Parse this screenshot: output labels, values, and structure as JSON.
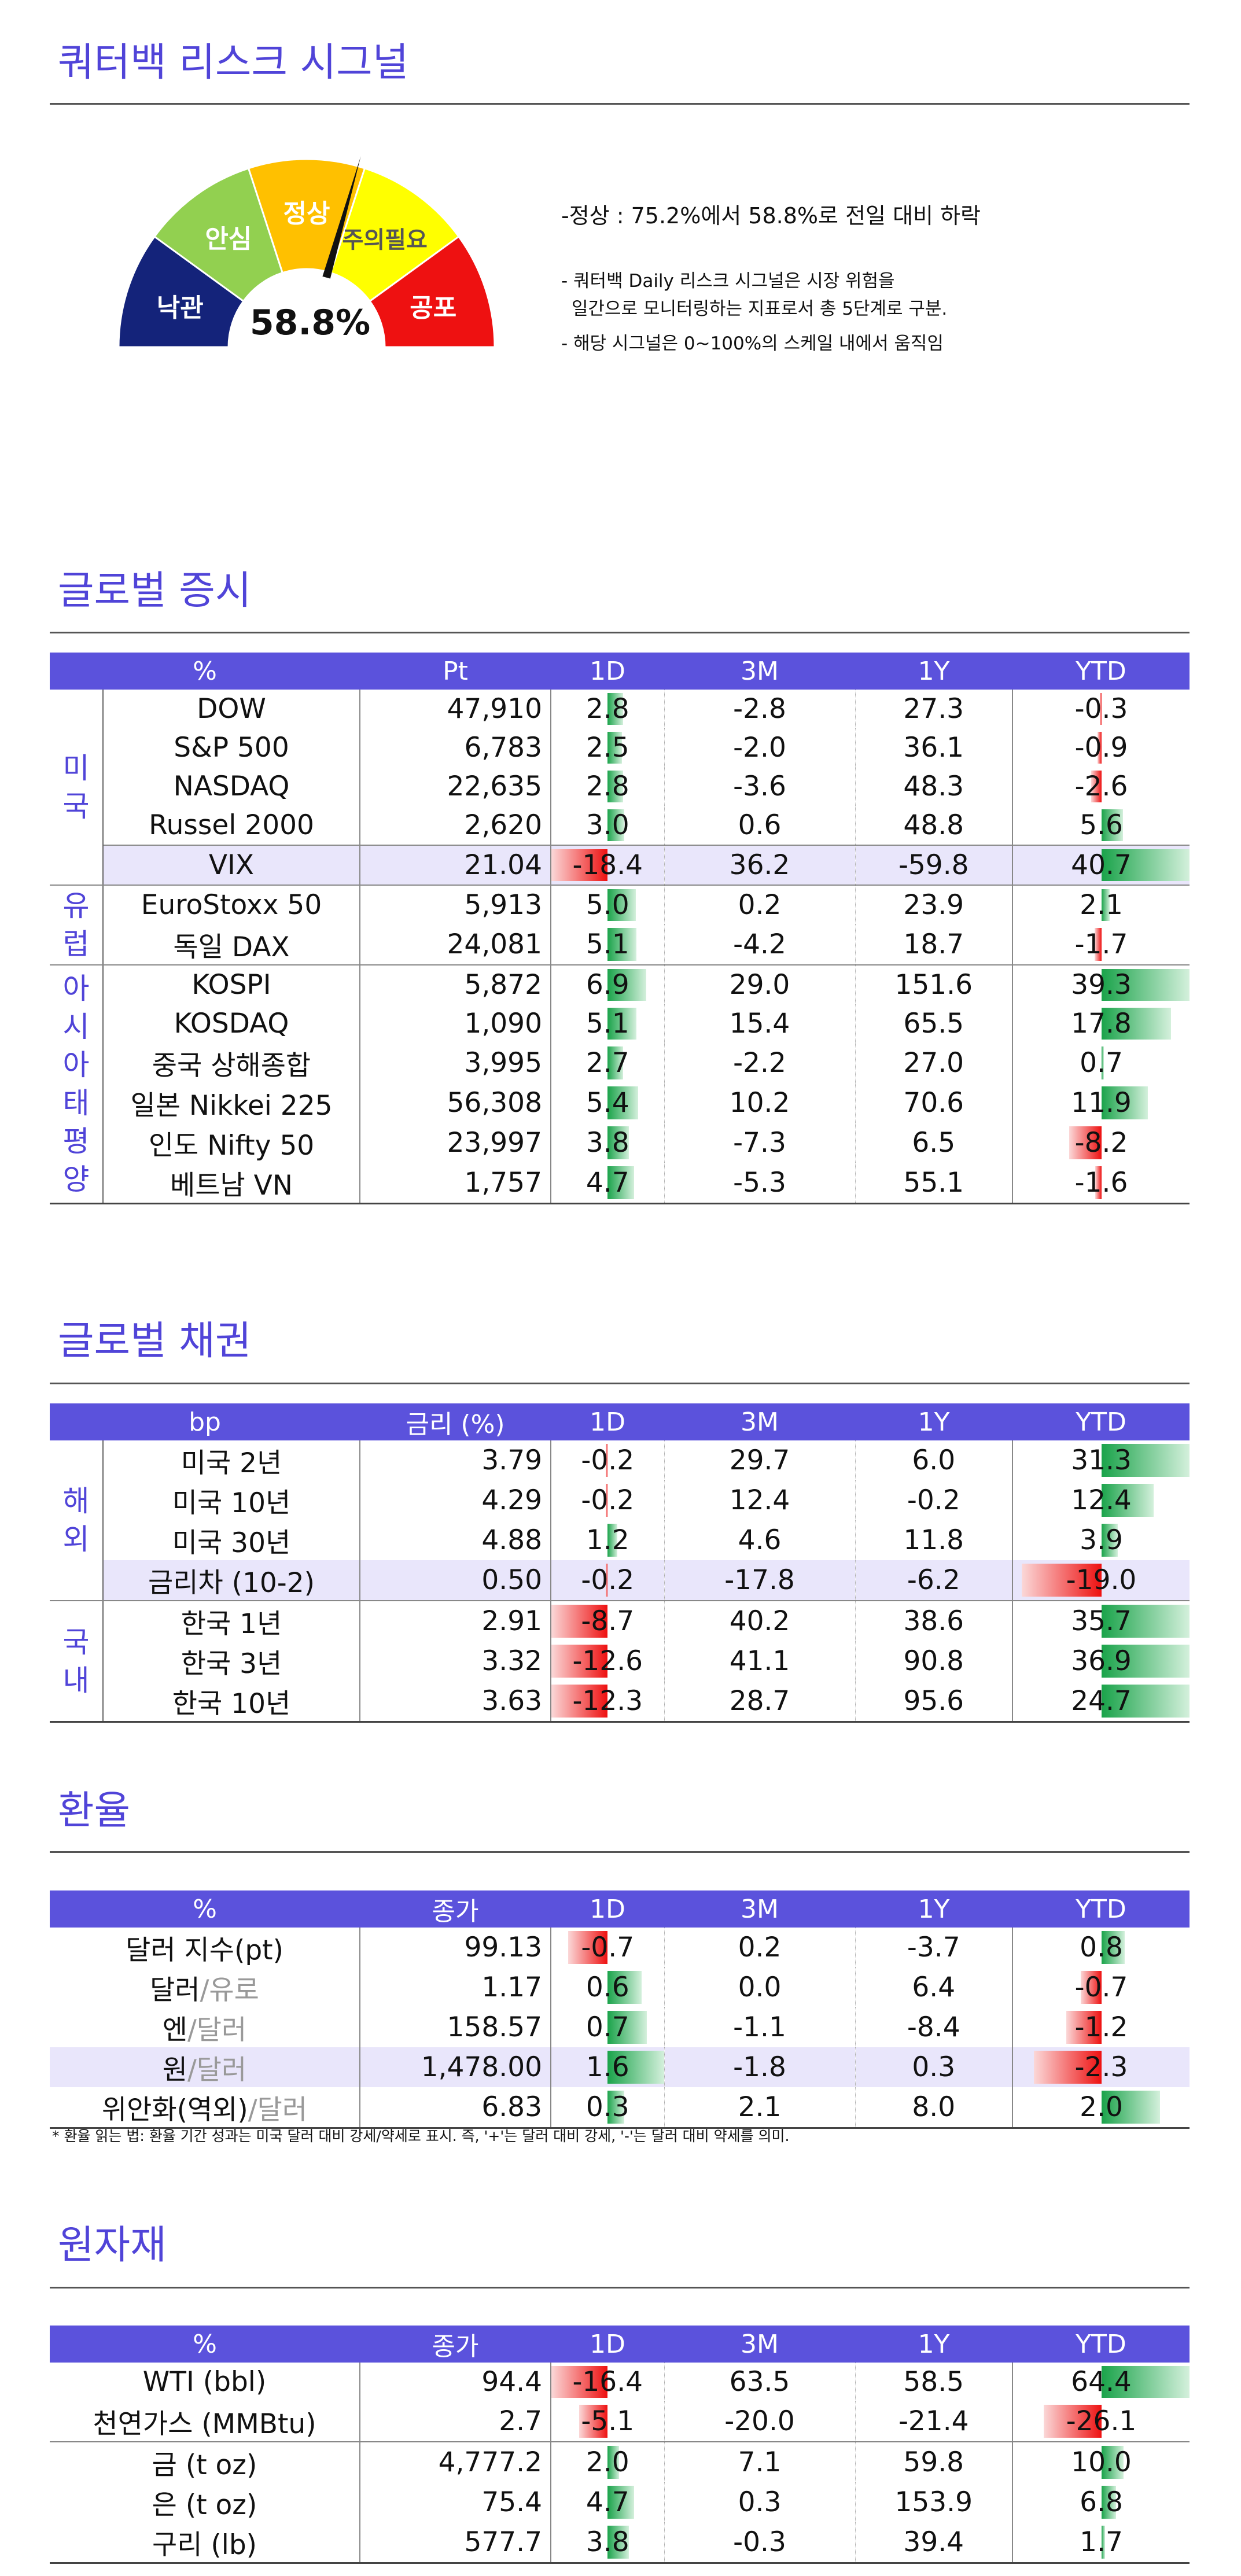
{
  "risk": {
    "title": "쿼터백 리스크 시그널",
    "value_text": "58.8%",
    "value_pct": 58.8,
    "levels": [
      "낙관",
      "안심",
      "정상",
      "주의필요",
      "공포"
    ],
    "summary": "-정상 : 75.2%에서 58.8%로 전일 대비 하락",
    "note1": "- 쿼터백 Daily 리스크 시그널은 시장 위험을",
    "note2": "일간으로 모니터링하는 지표로서 총 5단계로 구분.",
    "note3": "- 해당 시그널은 0~100%의 스케일 내에서 움직임"
  },
  "colors": {
    "accent": "#5044d8",
    "header": "#5b52dc",
    "pos": "#1aa34a",
    "neg": "#ee1111"
  },
  "sections": [
    {
      "title": "글로벌 증시",
      "headers": [
        "%",
        "Pt",
        "1D",
        "3M",
        "1Y",
        "YTD"
      ],
      "bar_max_1d": 20,
      "bar_max_ytd": 45,
      "groups": [
        {
          "label": "미국",
          "rows": [
            {
              "name": "DOW",
              "v": "47,910",
              "d1": "2.8",
              "m3": "-2.8",
              "y1": "27.3",
              "ytd": "-0.3"
            },
            {
              "name": "S&P 500",
              "v": "6,783",
              "d1": "2.5",
              "m3": "-2.0",
              "y1": "36.1",
              "ytd": "-0.9"
            },
            {
              "name": "NASDAQ",
              "v": "22,635",
              "d1": "2.8",
              "m3": "-3.6",
              "y1": "48.3",
              "ytd": "-2.6"
            },
            {
              "name": "Russel 2000",
              "v": "2,620",
              "d1": "3.0",
              "m3": "0.6",
              "y1": "48.8",
              "ytd": "5.6"
            },
            {
              "name": "VIX",
              "v": "21.04",
              "d1": "-18.4",
              "m3": "36.2",
              "y1": "-59.8",
              "ytd": "40.7"
            }
          ]
        },
        {
          "label": "유럽",
          "rows": [
            {
              "name": "EuroStoxx 50",
              "v": "5,913",
              "d1": "5.0",
              "m3": "0.2",
              "y1": "23.9",
              "ytd": "2.1"
            },
            {
              "name": "독일 DAX",
              "v": "24,081",
              "d1": "5.1",
              "m3": "-4.2",
              "y1": "18.7",
              "ytd": "-1.7"
            }
          ]
        },
        {
          "label": "아시아태평양",
          "rows": [
            {
              "name": "KOSPI",
              "v": "5,872",
              "d1": "6.9",
              "m3": "29.0",
              "y1": "151.6",
              "ytd": "39.3"
            },
            {
              "name": "KOSDAQ",
              "v": "1,090",
              "d1": "5.1",
              "m3": "15.4",
              "y1": "65.5",
              "ytd": "17.8"
            },
            {
              "name": "중국 상해종합",
              "v": "3,995",
              "d1": "2.7",
              "m3": "-2.2",
              "y1": "27.0",
              "ytd": "0.7"
            },
            {
              "name": "일본 Nikkei 225",
              "v": "56,308",
              "d1": "5.4",
              "m3": "10.2",
              "y1": "70.6",
              "ytd": "11.9"
            },
            {
              "name": "인도 Nifty 50",
              "v": "23,997",
              "d1": "3.8",
              "m3": "-7.3",
              "y1": "6.5",
              "ytd": "-8.2"
            },
            {
              "name": "베트남 VN",
              "v": "1,757",
              "d1": "4.7",
              "m3": "-5.3",
              "y1": "55.1",
              "ytd": "-1.6"
            }
          ]
        }
      ]
    },
    {
      "title": "글로벌 채권",
      "headers": [
        "bp",
        "금리 (%)",
        "1D",
        "3M",
        "1Y",
        "YTD"
      ],
      "bar_max_1d": 14,
      "bar_max_ytd": 42,
      "groups": [
        {
          "label": "해외",
          "rows": [
            {
              "name": "미국 2년",
              "v": "3.79",
              "d1": "-0.2",
              "m3": "29.7",
              "y1": "6.0",
              "ytd": "31.3"
            },
            {
              "name": "미국 10년",
              "v": "4.29",
              "d1": "-0.2",
              "m3": "12.4",
              "y1": "-0.2",
              "ytd": "12.4"
            },
            {
              "name": "미국 30년",
              "v": "4.88",
              "d1": "1.2",
              "m3": "4.6",
              "y1": "11.8",
              "ytd": "3.9"
            },
            {
              "name": "금리차 (10-2)",
              "v": "0.50",
              "d1": "-0.2",
              "m3": "-17.8",
              "y1": "-6.2",
              "ytd": "-19.0"
            }
          ]
        },
        {
          "label": "국내",
          "rows": [
            {
              "name": "한국 1년",
              "v": "2.91",
              "d1": "-8.7",
              "m3": "40.2",
              "y1": "38.6",
              "ytd": "35.7"
            },
            {
              "name": "한국 3년",
              "v": "3.32",
              "d1": "-12.6",
              "m3": "41.1",
              "y1": "90.8",
              "ytd": "36.9"
            },
            {
              "name": "한국 10년",
              "v": "3.63",
              "d1": "-12.3",
              "m3": "28.7",
              "y1": "95.6",
              "ytd": "24.7"
            }
          ]
        }
      ]
    },
    {
      "title": "환율",
      "headers": [
        "%",
        "종가",
        "1D",
        "3M",
        "1Y",
        "YTD"
      ],
      "bar_max_1d": 2.0,
      "bar_max_ytd": 6.0,
      "rows": [
        {
          "name": "달러 지수(pt)",
          "v": "99.13",
          "d1": "-0.7",
          "m3": "0.2",
          "y1": "-3.7",
          "ytd": "0.8"
        },
        {
          "name_a": "달러",
          "name_b": "/유로",
          "v": "1.17",
          "d1": "0.6",
          "m3": "0.0",
          "y1": "6.4",
          "ytd": "-0.7"
        },
        {
          "name_a": "엔",
          "name_b": "/달러",
          "v": "158.57",
          "d1": "0.7",
          "m3": "-1.1",
          "y1": "-8.4",
          "ytd": "-1.2"
        },
        {
          "name_a": "원",
          "name_b": "/달러",
          "v": "1,478.00",
          "d1": "1.6",
          "m3": "-1.8",
          "y1": "0.3",
          "ytd": "-2.3"
        },
        {
          "name_a": "위안화(역외)",
          "name_b": "/달러",
          "v": "6.83",
          "d1": "0.3",
          "m3": "2.1",
          "y1": "8.0",
          "ytd": "2.0"
        }
      ],
      "note": "* 환율 읽는 법: 환율 기간 성과는 미국 달러 대비 강세/약세로 표시. 즉, '+'는 달러 대비 강세, '-'는 달러 대비 약세를 의미."
    },
    {
      "title": "원자재",
      "headers": [
        "%",
        "종가",
        "1D",
        "3M",
        "1Y",
        "YTD"
      ],
      "bar_max_1d": 20,
      "bar_max_ytd": 80,
      "rows": [
        {
          "name": "WTI (bbl)",
          "v": "94.4",
          "d1": "-16.4",
          "m3": "63.5",
          "y1": "58.5",
          "ytd": "64.4"
        },
        {
          "name": "천연가스 (MMBtu)",
          "v": "2.7",
          "d1": "-5.1",
          "m3": "-20.0",
          "y1": "-21.4",
          "ytd": "-26.1"
        },
        {
          "name": "금 (t oz)",
          "v": "4,777.2",
          "d1": "2.0",
          "m3": "7.1",
          "y1": "59.8",
          "ytd": "10.0"
        },
        {
          "name": "은 (t oz)",
          "v": "75.4",
          "d1": "4.7",
          "m3": "0.3",
          "y1": "153.9",
          "ytd": "6.8"
        },
        {
          "name": "구리 (lb)",
          "v": "577.7",
          "d1": "3.8",
          "m3": "-0.3",
          "y1": "39.4",
          "ytd": "1.7"
        }
      ]
    }
  ]
}
